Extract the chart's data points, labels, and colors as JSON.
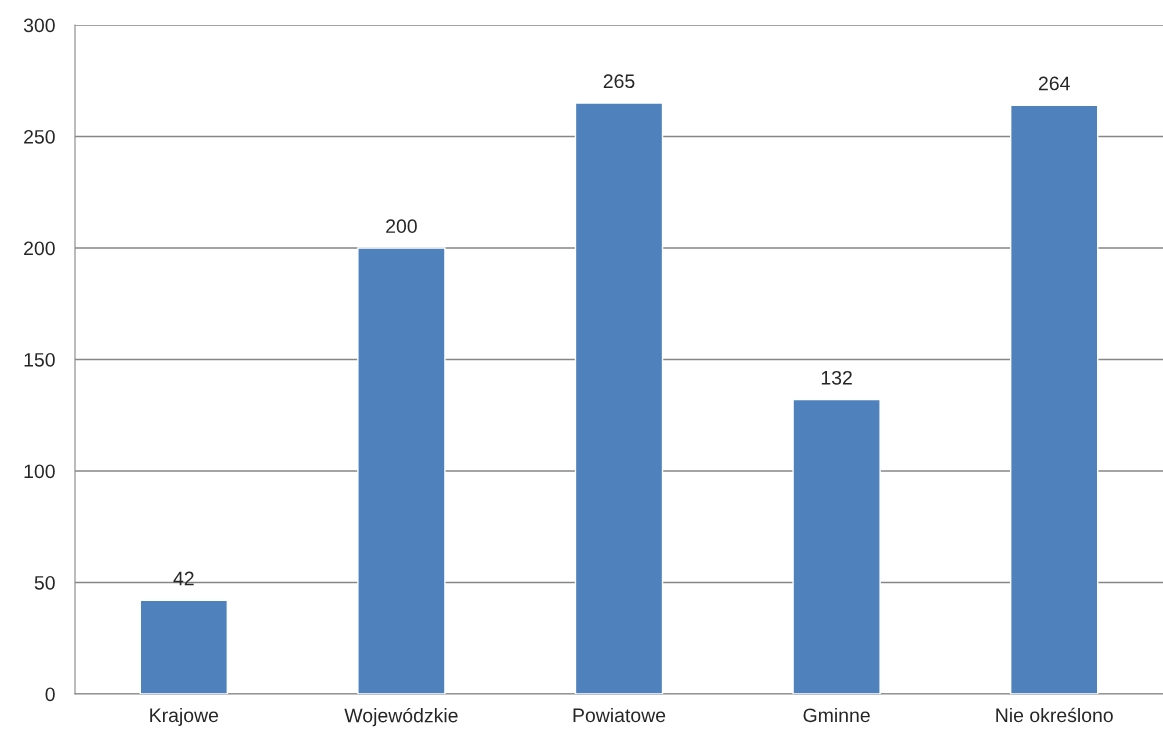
{
  "chart_data": {
    "type": "bar",
    "categories": [
      "Krajowe",
      "Wojewódzkie",
      "Powiatowe",
      "Gminne",
      "Nie określono"
    ],
    "values": [
      42,
      200,
      265,
      132,
      264
    ],
    "color": "#4f81bd",
    "ylim": [
      0,
      300
    ],
    "yticks": [
      0,
      50,
      100,
      150,
      200,
      250,
      300
    ],
    "grid": "y",
    "data_labels": true,
    "legend": false
  }
}
